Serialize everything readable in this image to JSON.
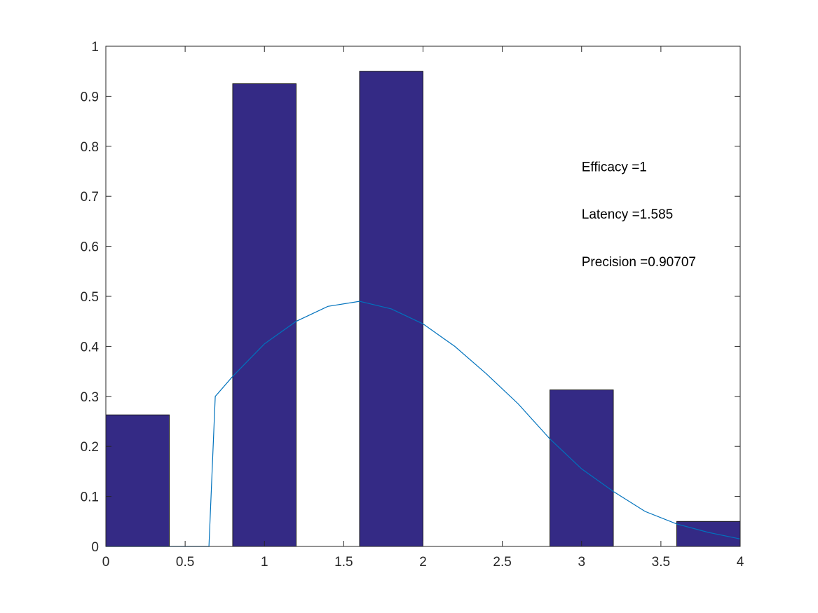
{
  "chart_data": {
    "type": "bar",
    "title": "",
    "xlabel": "",
    "ylabel": "",
    "xlim": [
      0,
      4
    ],
    "ylim": [
      0,
      1
    ],
    "x_ticks": [
      0,
      0.5,
      1,
      1.5,
      2,
      2.5,
      3,
      3.5,
      4
    ],
    "y_ticks": [
      0,
      0.1,
      0.2,
      0.3,
      0.4,
      0.5,
      0.6,
      0.7,
      0.8,
      0.9,
      1
    ],
    "x_tick_labels": [
      "0",
      "0.5",
      "1",
      "1.5",
      "2",
      "2.5",
      "3",
      "3.5",
      "4"
    ],
    "y_tick_labels": [
      "0",
      "0.1",
      "0.2",
      "0.3",
      "0.4",
      "0.5",
      "0.6",
      "0.7",
      "0.8",
      "0.9",
      "1"
    ],
    "grid": false,
    "bar_width": 0.4,
    "bars": [
      {
        "x": 0.2,
        "value": 0.263
      },
      {
        "x": 1.0,
        "value": 0.925
      },
      {
        "x": 1.8,
        "value": 0.95
      },
      {
        "x": 3.0,
        "value": 0.313
      },
      {
        "x": 3.8,
        "value": 0.05
      }
    ],
    "curve": {
      "type": "line",
      "points": [
        [
          0,
          0
        ],
        [
          0.65,
          0
        ],
        [
          0.69,
          0.3
        ],
        [
          0.8,
          0.34
        ],
        [
          1.0,
          0.405
        ],
        [
          1.2,
          0.45
        ],
        [
          1.4,
          0.48
        ],
        [
          1.6,
          0.49
        ],
        [
          1.8,
          0.475
        ],
        [
          2.0,
          0.445
        ],
        [
          2.2,
          0.4
        ],
        [
          2.4,
          0.345
        ],
        [
          2.6,
          0.285
        ],
        [
          2.8,
          0.215
        ],
        [
          3.0,
          0.155
        ],
        [
          3.2,
          0.11
        ],
        [
          3.4,
          0.07
        ],
        [
          3.6,
          0.045
        ],
        [
          3.8,
          0.028
        ],
        [
          4.0,
          0.015
        ]
      ]
    },
    "annotations": [
      {
        "text": "Efficacy =1",
        "x": 3.0,
        "y": 0.76
      },
      {
        "text": "Latency =1.585",
        "x": 3.0,
        "y": 0.665
      },
      {
        "text": "Precision =0.90707",
        "x": 3.0,
        "y": 0.57
      }
    ]
  },
  "colors": {
    "bar_fill": "#342a85",
    "bar_edge": "#1a1a1a",
    "curve": "#0072bd",
    "axes": "#262626"
  }
}
